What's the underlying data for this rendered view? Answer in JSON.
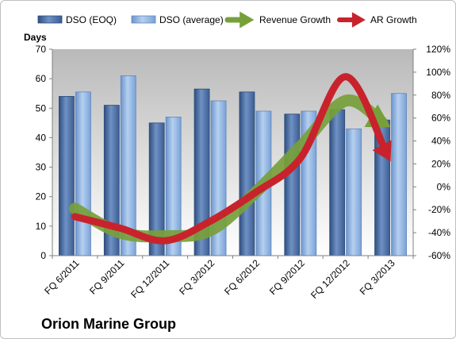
{
  "company": "Orion Marine Group",
  "chart_data": {
    "type": "bar",
    "categories": [
      "FQ 6/2011",
      "FQ 9/2011",
      "FQ 12/2011",
      "FQ 3/2012",
      "FQ 6/2012",
      "FQ 9/2012",
      "FQ 12/2012",
      "FQ 3/2013"
    ],
    "ylabel": "Days",
    "ylim": [
      0,
      70
    ],
    "yticks": [
      0,
      10,
      20,
      30,
      40,
      50,
      60,
      70
    ],
    "y2lim": [
      -60,
      120
    ],
    "y2ticks": [
      -60,
      -40,
      -20,
      0,
      20,
      40,
      60,
      80,
      100,
      120
    ],
    "y2tick_suffix": "%",
    "legend_position": "top",
    "grid": false,
    "series": [
      {
        "name": "DSO (EOQ)",
        "kind": "bar",
        "axis": "left",
        "values": [
          54,
          51,
          45,
          56.5,
          55.5,
          48,
          49.5,
          46
        ],
        "color": "#4a6fa5"
      },
      {
        "name": "DSO (average)",
        "kind": "bar",
        "axis": "left",
        "values": [
          55.5,
          61,
          47,
          52.5,
          49,
          49,
          43,
          55
        ],
        "color": "#8fb4e3"
      },
      {
        "name": "Revenue Growth",
        "kind": "arrow-line",
        "axis": "right",
        "values": [
          -19,
          -40,
          -43,
          -38,
          -5,
          35,
          75,
          52
        ],
        "color": "#77a03b"
      },
      {
        "name": "AR Growth",
        "kind": "arrow-line",
        "axis": "right",
        "values": [
          -26,
          -36,
          -47,
          -30,
          -5,
          25,
          96,
          22
        ],
        "color": "#c8232c"
      }
    ]
  }
}
